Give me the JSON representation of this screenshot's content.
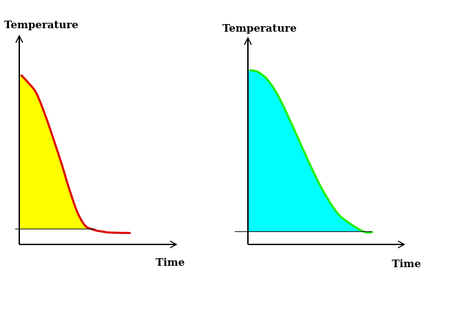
{
  "colors": {
    "background": "#ffffff",
    "axis": "#000000",
    "chart1_fill": "#ffff00",
    "chart1_line": "#dd0000",
    "chart2_fill": "#00ffff",
    "chart2_line": "#22ee00"
  },
  "chart_data": [
    {
      "type": "area",
      "xlabel": "Time",
      "ylabel": "Temperature",
      "grid": false,
      "legend": "none",
      "xlim": [
        0,
        10
      ],
      "ylim": [
        0,
        10
      ],
      "baseline": 0.9,
      "series": [
        {
          "x": [
            0.2,
            0.9,
            1.5,
            2.2,
            3.0,
            3.8,
            4.5,
            5.2,
            5.9,
            6.5,
            7.0,
            7.5,
            8.0,
            9.0,
            9.9
          ],
          "y": [
            9.9,
            9.4,
            8.9,
            7.8,
            6.3,
            4.7,
            3.2,
            1.9,
            1.1,
            0.9,
            0.8,
            0.75,
            0.7,
            0.68,
            0.67
          ]
        }
      ]
    },
    {
      "type": "area",
      "xlabel": "Time",
      "ylabel": "Temperature",
      "grid": false,
      "legend": "none",
      "xlim": [
        0,
        10
      ],
      "ylim": [
        0,
        10
      ],
      "baseline": 0.75,
      "series": [
        {
          "x": [
            0.2,
            0.8,
            1.5,
            2.1,
            2.7,
            3.4,
            4.2,
            5.0,
            5.8,
            6.6,
            7.3,
            8.0,
            8.6,
            9.1,
            9.5,
            9.9
          ],
          "y": [
            10.2,
            10.1,
            9.7,
            9.1,
            8.3,
            7.2,
            5.9,
            4.6,
            3.4,
            2.4,
            1.7,
            1.3,
            1.0,
            0.8,
            0.7,
            0.72
          ]
        }
      ]
    }
  ]
}
